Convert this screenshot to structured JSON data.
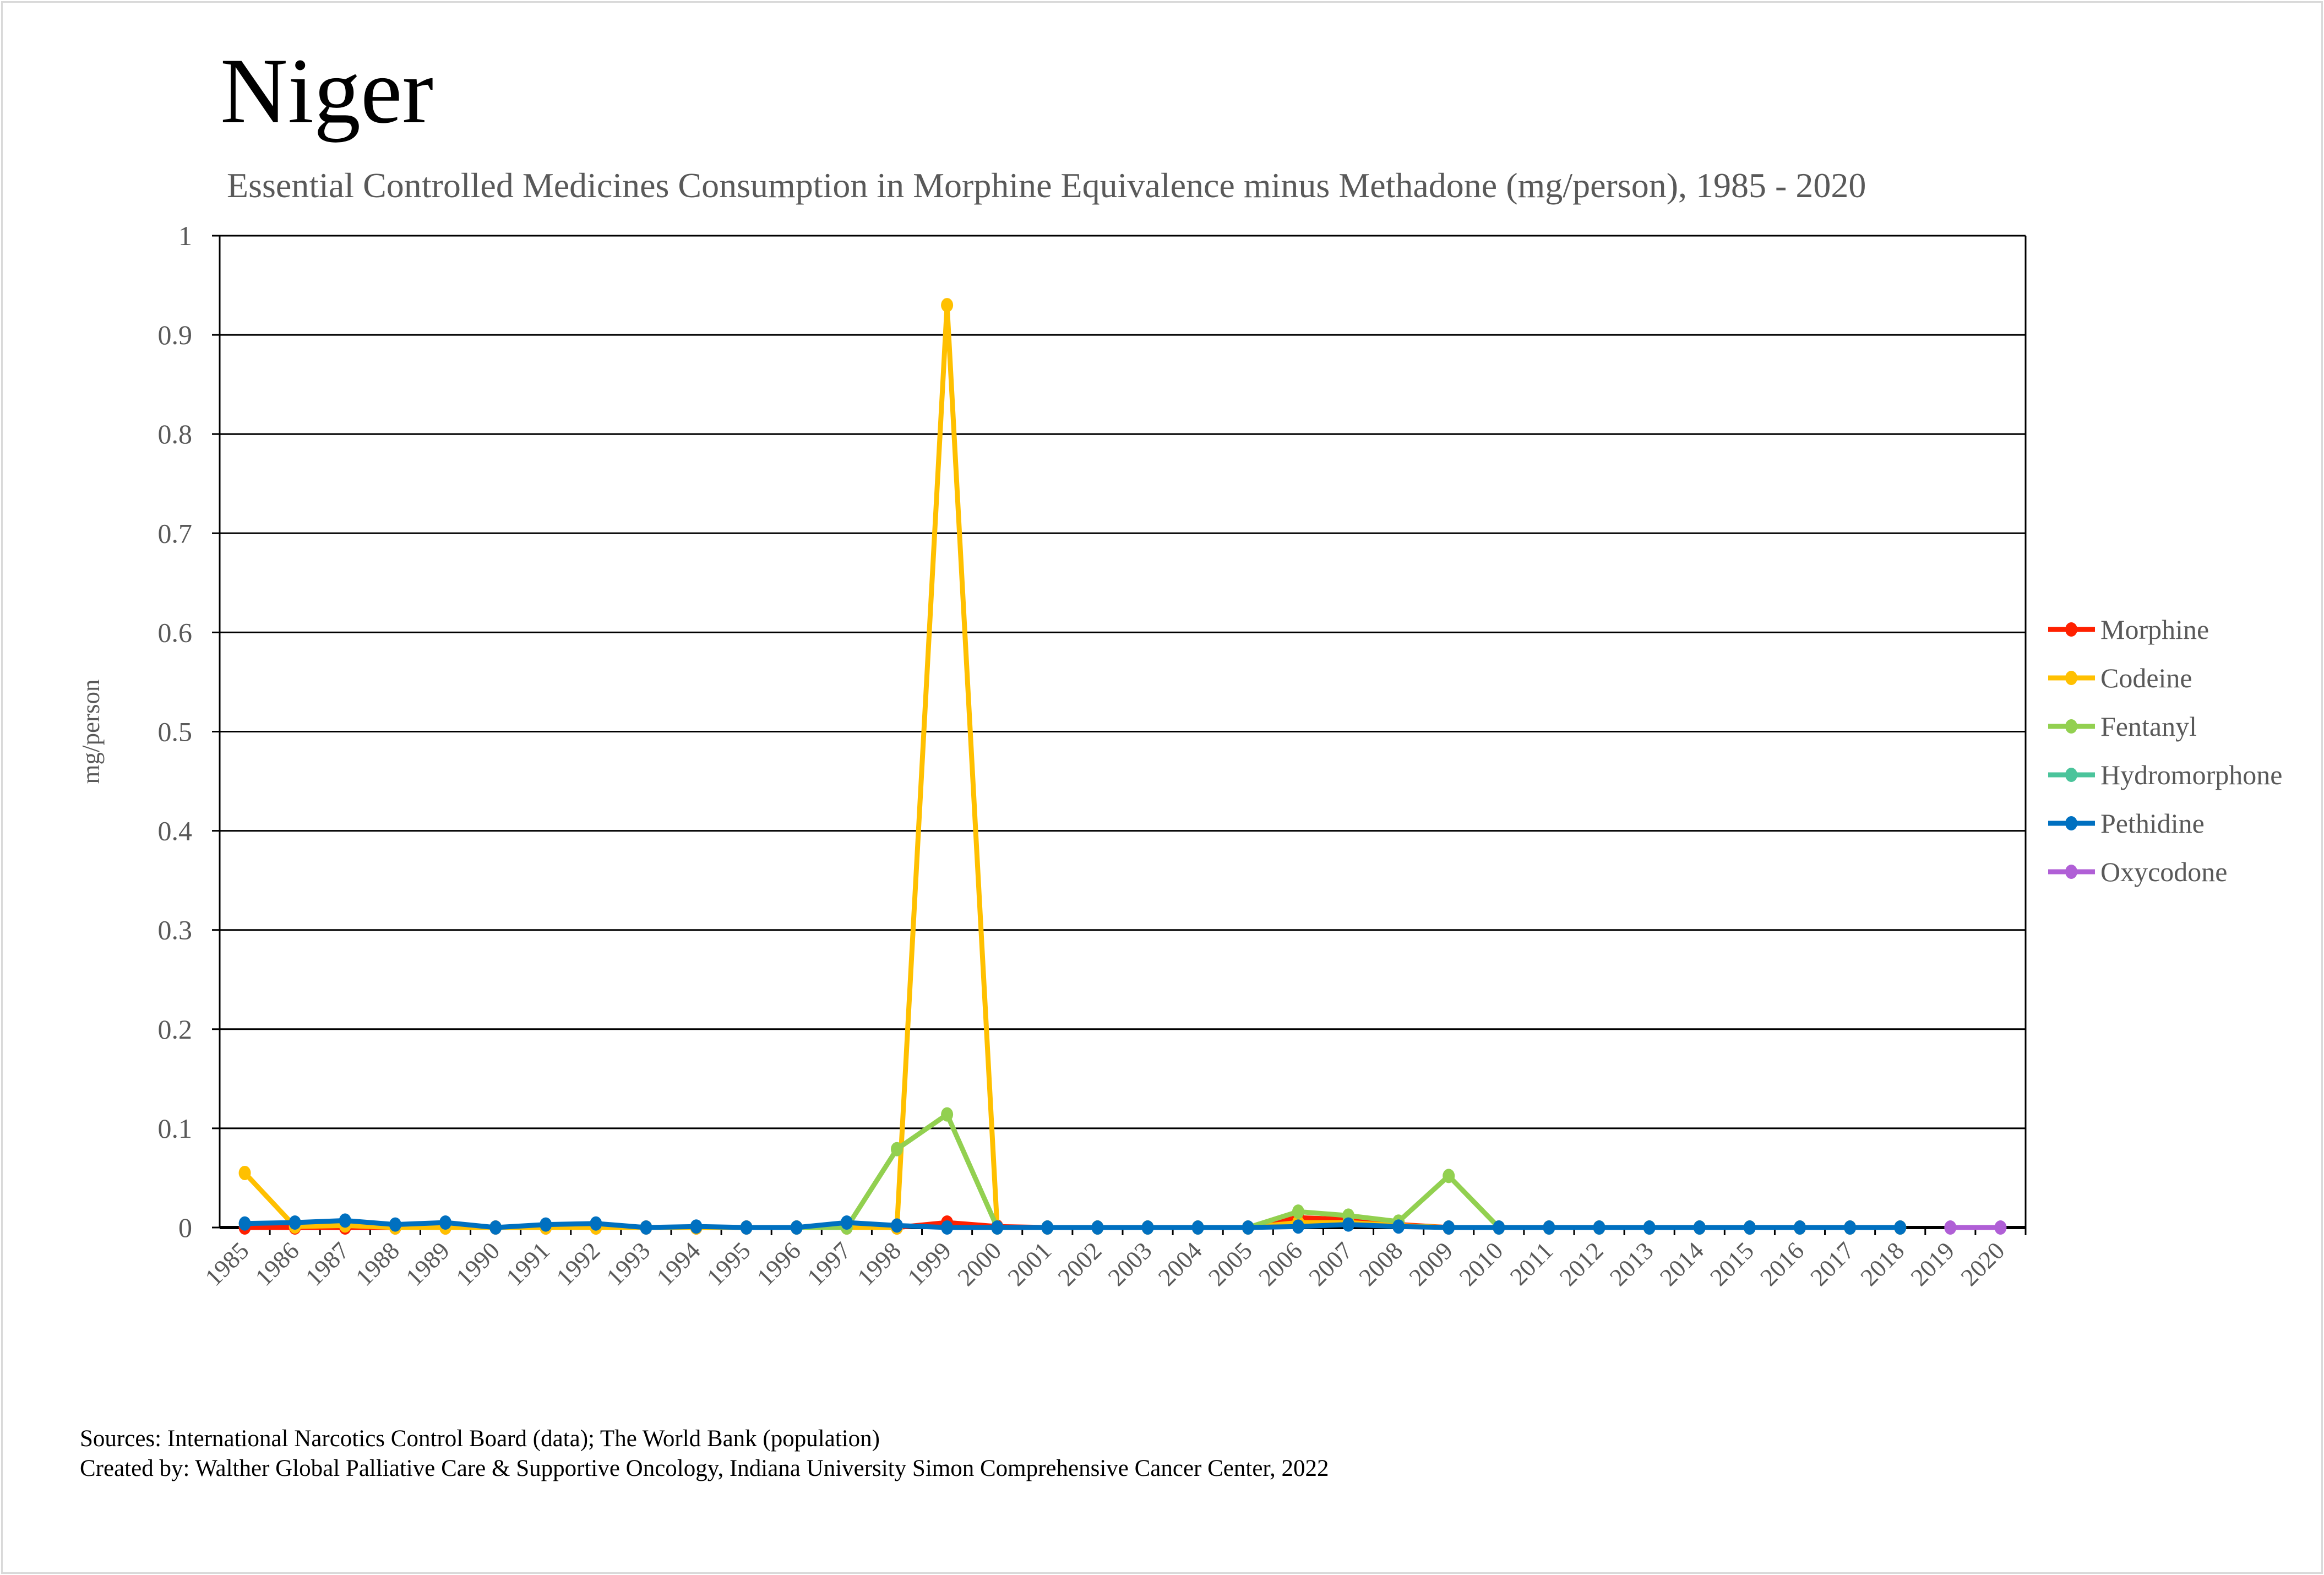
{
  "chart_data": {
    "type": "line",
    "title": "Niger",
    "subtitle": "Essential Controlled Medicines Consumption in Morphine Equivalence minus Methadone (mg/person), 1985 - 2020",
    "xlabel": "",
    "ylabel": "mg/person",
    "ylim": [
      0,
      1
    ],
    "yticks": [
      "0",
      "0.1",
      "0.2",
      "0.3",
      "0.4",
      "0.5",
      "0.6",
      "0.7",
      "0.8",
      "0.9",
      "1"
    ],
    "grid": true,
    "legend_position": "right",
    "categories": [
      "1985",
      "1986",
      "1987",
      "1988",
      "1989",
      "1990",
      "1991",
      "1992",
      "1993",
      "1994",
      "1995",
      "1996",
      "1997",
      "1998",
      "1999",
      "2000",
      "2001",
      "2002",
      "2003",
      "2004",
      "2005",
      "2006",
      "2007",
      "2008",
      "2009",
      "2010",
      "2011",
      "2012",
      "2013",
      "2014",
      "2015",
      "2016",
      "2017",
      "2018",
      "2019",
      "2020"
    ],
    "series": [
      {
        "name": "Morphine",
        "color": "#ff2000",
        "values": [
          0,
          0,
          0,
          0,
          0,
          0,
          0,
          0,
          0,
          0,
          0,
          0,
          0,
          0,
          0.005,
          0.001,
          0,
          0,
          0,
          0,
          0,
          0.01,
          0.008,
          0.003,
          0,
          0,
          0,
          0,
          0,
          0,
          0,
          0,
          0,
          0,
          null,
          null
        ]
      },
      {
        "name": "Codeine",
        "color": "#ffc000",
        "values": [
          0.055,
          0.001,
          0.002,
          0,
          0,
          0,
          0,
          0,
          0,
          0,
          0,
          0,
          0,
          0,
          0.93,
          0,
          0,
          0,
          0,
          0,
          0,
          0.005,
          0.005,
          0.002,
          0,
          0,
          0,
          0,
          0,
          0,
          0,
          0,
          0,
          0,
          null,
          null
        ]
      },
      {
        "name": "Fentanyl",
        "color": "#92d050",
        "values": [
          null,
          null,
          null,
          null,
          null,
          null,
          null,
          null,
          null,
          null,
          null,
          0,
          0,
          0.079,
          0.114,
          0,
          0,
          0,
          0,
          0,
          0,
          0.016,
          0.012,
          0.006,
          0.052,
          0,
          0,
          0,
          0,
          0,
          0,
          0,
          0,
          0,
          null,
          null
        ]
      },
      {
        "name": "Hydromorphone",
        "color": "#4bc49b",
        "values": [
          null,
          null,
          null,
          null,
          null,
          null,
          null,
          null,
          null,
          null,
          null,
          null,
          null,
          null,
          null,
          null,
          null,
          null,
          null,
          null,
          null,
          null,
          null,
          null,
          null,
          null,
          null,
          null,
          null,
          null,
          null,
          null,
          null,
          null,
          null,
          null
        ]
      },
      {
        "name": "Pethidine",
        "color": "#0070c0",
        "values": [
          0.004,
          0.005,
          0.007,
          0.003,
          0.005,
          0,
          0.003,
          0.004,
          0,
          0.001,
          0,
          0,
          0.005,
          0.002,
          0,
          0,
          0,
          0,
          0,
          0,
          0,
          0.001,
          0.003,
          0.001,
          0,
          0,
          0,
          0,
          0,
          0,
          0,
          0,
          0,
          0,
          null,
          null
        ]
      },
      {
        "name": "Oxycodone",
        "color": "#b05fd6",
        "values": [
          null,
          null,
          null,
          null,
          null,
          null,
          null,
          null,
          null,
          null,
          null,
          null,
          null,
          null,
          null,
          null,
          null,
          null,
          null,
          null,
          null,
          null,
          null,
          null,
          null,
          null,
          null,
          null,
          null,
          null,
          null,
          null,
          null,
          null,
          0,
          0
        ]
      }
    ]
  },
  "footer": {
    "sources": "Sources: International Narcotics Control Board (data); The World Bank (population)",
    "created_by": "Created by: Walther Global Palliative Care & Supportive Oncology, Indiana University Simon Comprehensive Cancer Center, 2022"
  }
}
